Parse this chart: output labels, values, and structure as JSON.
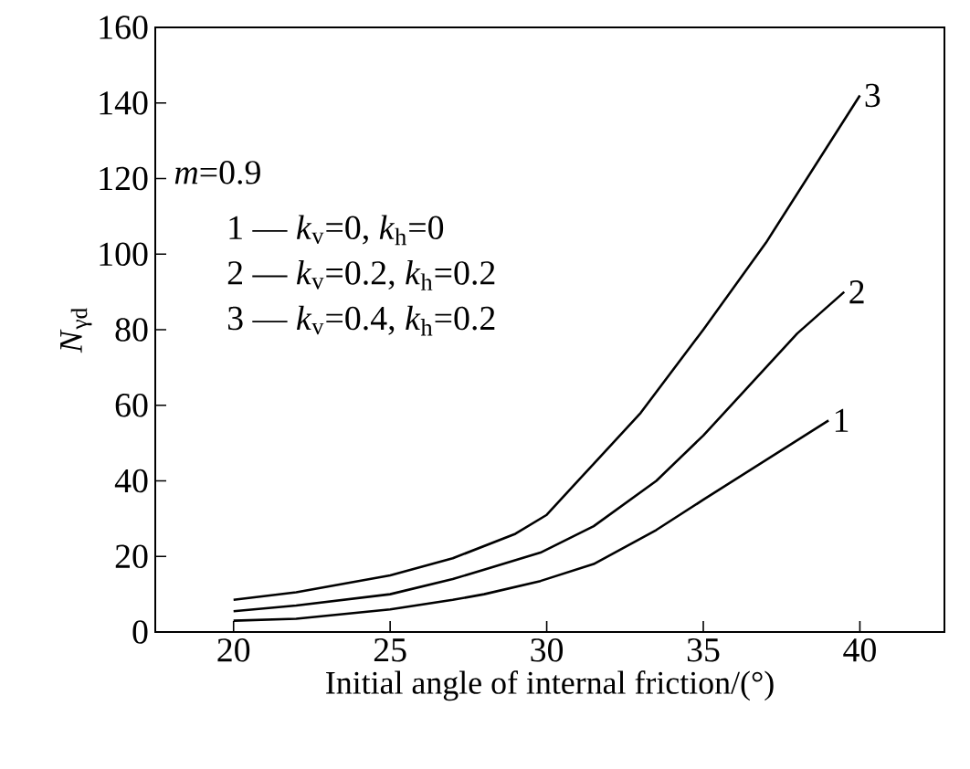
{
  "chart_data": {
    "type": "line",
    "xlabel": "Initial angle of internal friction/(°)",
    "ylabel": "*N*$_{γd}$",
    "xlim": [
      17.5,
      42.7
    ],
    "ylim": [
      0,
      160
    ],
    "xticks": [
      20,
      25,
      30,
      35,
      40
    ],
    "yticks": [
      0,
      20,
      40,
      60,
      80,
      100,
      120,
      140,
      160
    ],
    "grid": false,
    "legend": false,
    "annotations": [
      "*m*=0.9",
      "1 — *k*$_{v}$=0, *k*$_{h}$=0",
      "2 — *k*$_{v}$=0.2, *k*$_{h}$=0.2",
      "3 — *k*$_{v}$=0.4, *k*$_{h}$=0.2"
    ],
    "series": [
      {
        "name": "1",
        "color": "#000000",
        "x": [
          20,
          22,
          25,
          27,
          28,
          29.8,
          31.5,
          33.5,
          35,
          39
        ],
        "values": [
          3,
          3.5,
          6,
          8.5,
          10,
          13.5,
          18,
          27,
          35,
          56
        ]
      },
      {
        "name": "2",
        "color": "#000000",
        "x": [
          20,
          22,
          25,
          27,
          28,
          29.8,
          31.5,
          33.5,
          35,
          38,
          39.5
        ],
        "values": [
          5.5,
          7,
          10,
          14,
          16.5,
          21,
          28,
          40,
          52,
          79,
          90
        ]
      },
      {
        "name": "3",
        "color": "#000000",
        "x": [
          20,
          22,
          25,
          27,
          29,
          30,
          31,
          33,
          35,
          37,
          40
        ],
        "values": [
          8.5,
          10.5,
          15,
          19.5,
          26,
          31,
          40,
          58,
          80,
          103,
          142
        ]
      }
    ]
  }
}
